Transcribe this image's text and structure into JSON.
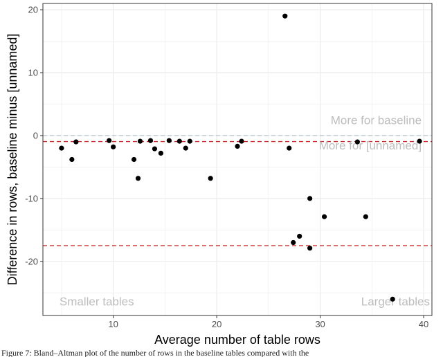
{
  "chart_data": {
    "type": "scatter",
    "xlabel": "Average number of table rows",
    "ylabel": "Difference in rows, baseline minus [unnamed]",
    "xlim": [
      3.2,
      40.8
    ],
    "ylim": [
      -28.6,
      21.0
    ],
    "x_ticks": [
      10,
      20,
      30,
      40
    ],
    "y_ticks": [
      -20,
      -10,
      0,
      10,
      20
    ],
    "grid": true,
    "points": [
      {
        "x": 5.0,
        "y": -2.0
      },
      {
        "x": 6.0,
        "y": -3.8
      },
      {
        "x": 6.4,
        "y": -1.0
      },
      {
        "x": 9.6,
        "y": -0.8
      },
      {
        "x": 10.0,
        "y": -1.8
      },
      {
        "x": 12.0,
        "y": -3.8
      },
      {
        "x": 12.4,
        "y": -6.8
      },
      {
        "x": 12.6,
        "y": -0.9
      },
      {
        "x": 13.6,
        "y": -0.8
      },
      {
        "x": 14.0,
        "y": -2.1
      },
      {
        "x": 14.6,
        "y": -2.8
      },
      {
        "x": 15.4,
        "y": -0.8
      },
      {
        "x": 16.4,
        "y": -0.9
      },
      {
        "x": 17.0,
        "y": -2.0
      },
      {
        "x": 17.4,
        "y": -0.9
      },
      {
        "x": 19.4,
        "y": -6.8
      },
      {
        "x": 22.0,
        "y": -1.7
      },
      {
        "x": 22.4,
        "y": -0.9
      },
      {
        "x": 26.6,
        "y": 19.0
      },
      {
        "x": 27.0,
        "y": -2.0
      },
      {
        "x": 27.4,
        "y": -17.0
      },
      {
        "x": 28.0,
        "y": -16.0
      },
      {
        "x": 29.0,
        "y": -10.0
      },
      {
        "x": 29.0,
        "y": -17.9
      },
      {
        "x": 30.4,
        "y": -12.9
      },
      {
        "x": 33.6,
        "y": -1.0
      },
      {
        "x": 34.4,
        "y": -12.9
      },
      {
        "x": 37.0,
        "y": -26.0
      },
      {
        "x": 39.6,
        "y": -0.9
      }
    ],
    "hlines": [
      {
        "y": 0,
        "color": "#b7c9cc",
        "style": "dashed"
      },
      {
        "y": -0.95,
        "color": "#c62a2a",
        "style": "dashed"
      },
      {
        "y": -17.5,
        "color": "#c62a2a",
        "style": "dashed"
      }
    ],
    "annotations": [
      {
        "text": "More for baseline",
        "x": 39.8,
        "y": 1.8,
        "anchor": "end"
      },
      {
        "text": "More for [unnamed]",
        "x": 39.8,
        "y": -2.2,
        "anchor": "end"
      },
      {
        "text": "Smaller tables",
        "x": 4.8,
        "y": -27.0,
        "anchor": "start"
      },
      {
        "text": "Larger tables",
        "x": 40.6,
        "y": -27.0,
        "anchor": "end"
      }
    ],
    "colors": {
      "points": "#000000",
      "grid": "#ebebeb",
      "border": "#333333",
      "reference": "#b7c9cc",
      "threshold": "#c62a2a"
    }
  },
  "caption": "Figure 7: Bland–Altman plot of the number of rows in the baseline tables compared with the"
}
